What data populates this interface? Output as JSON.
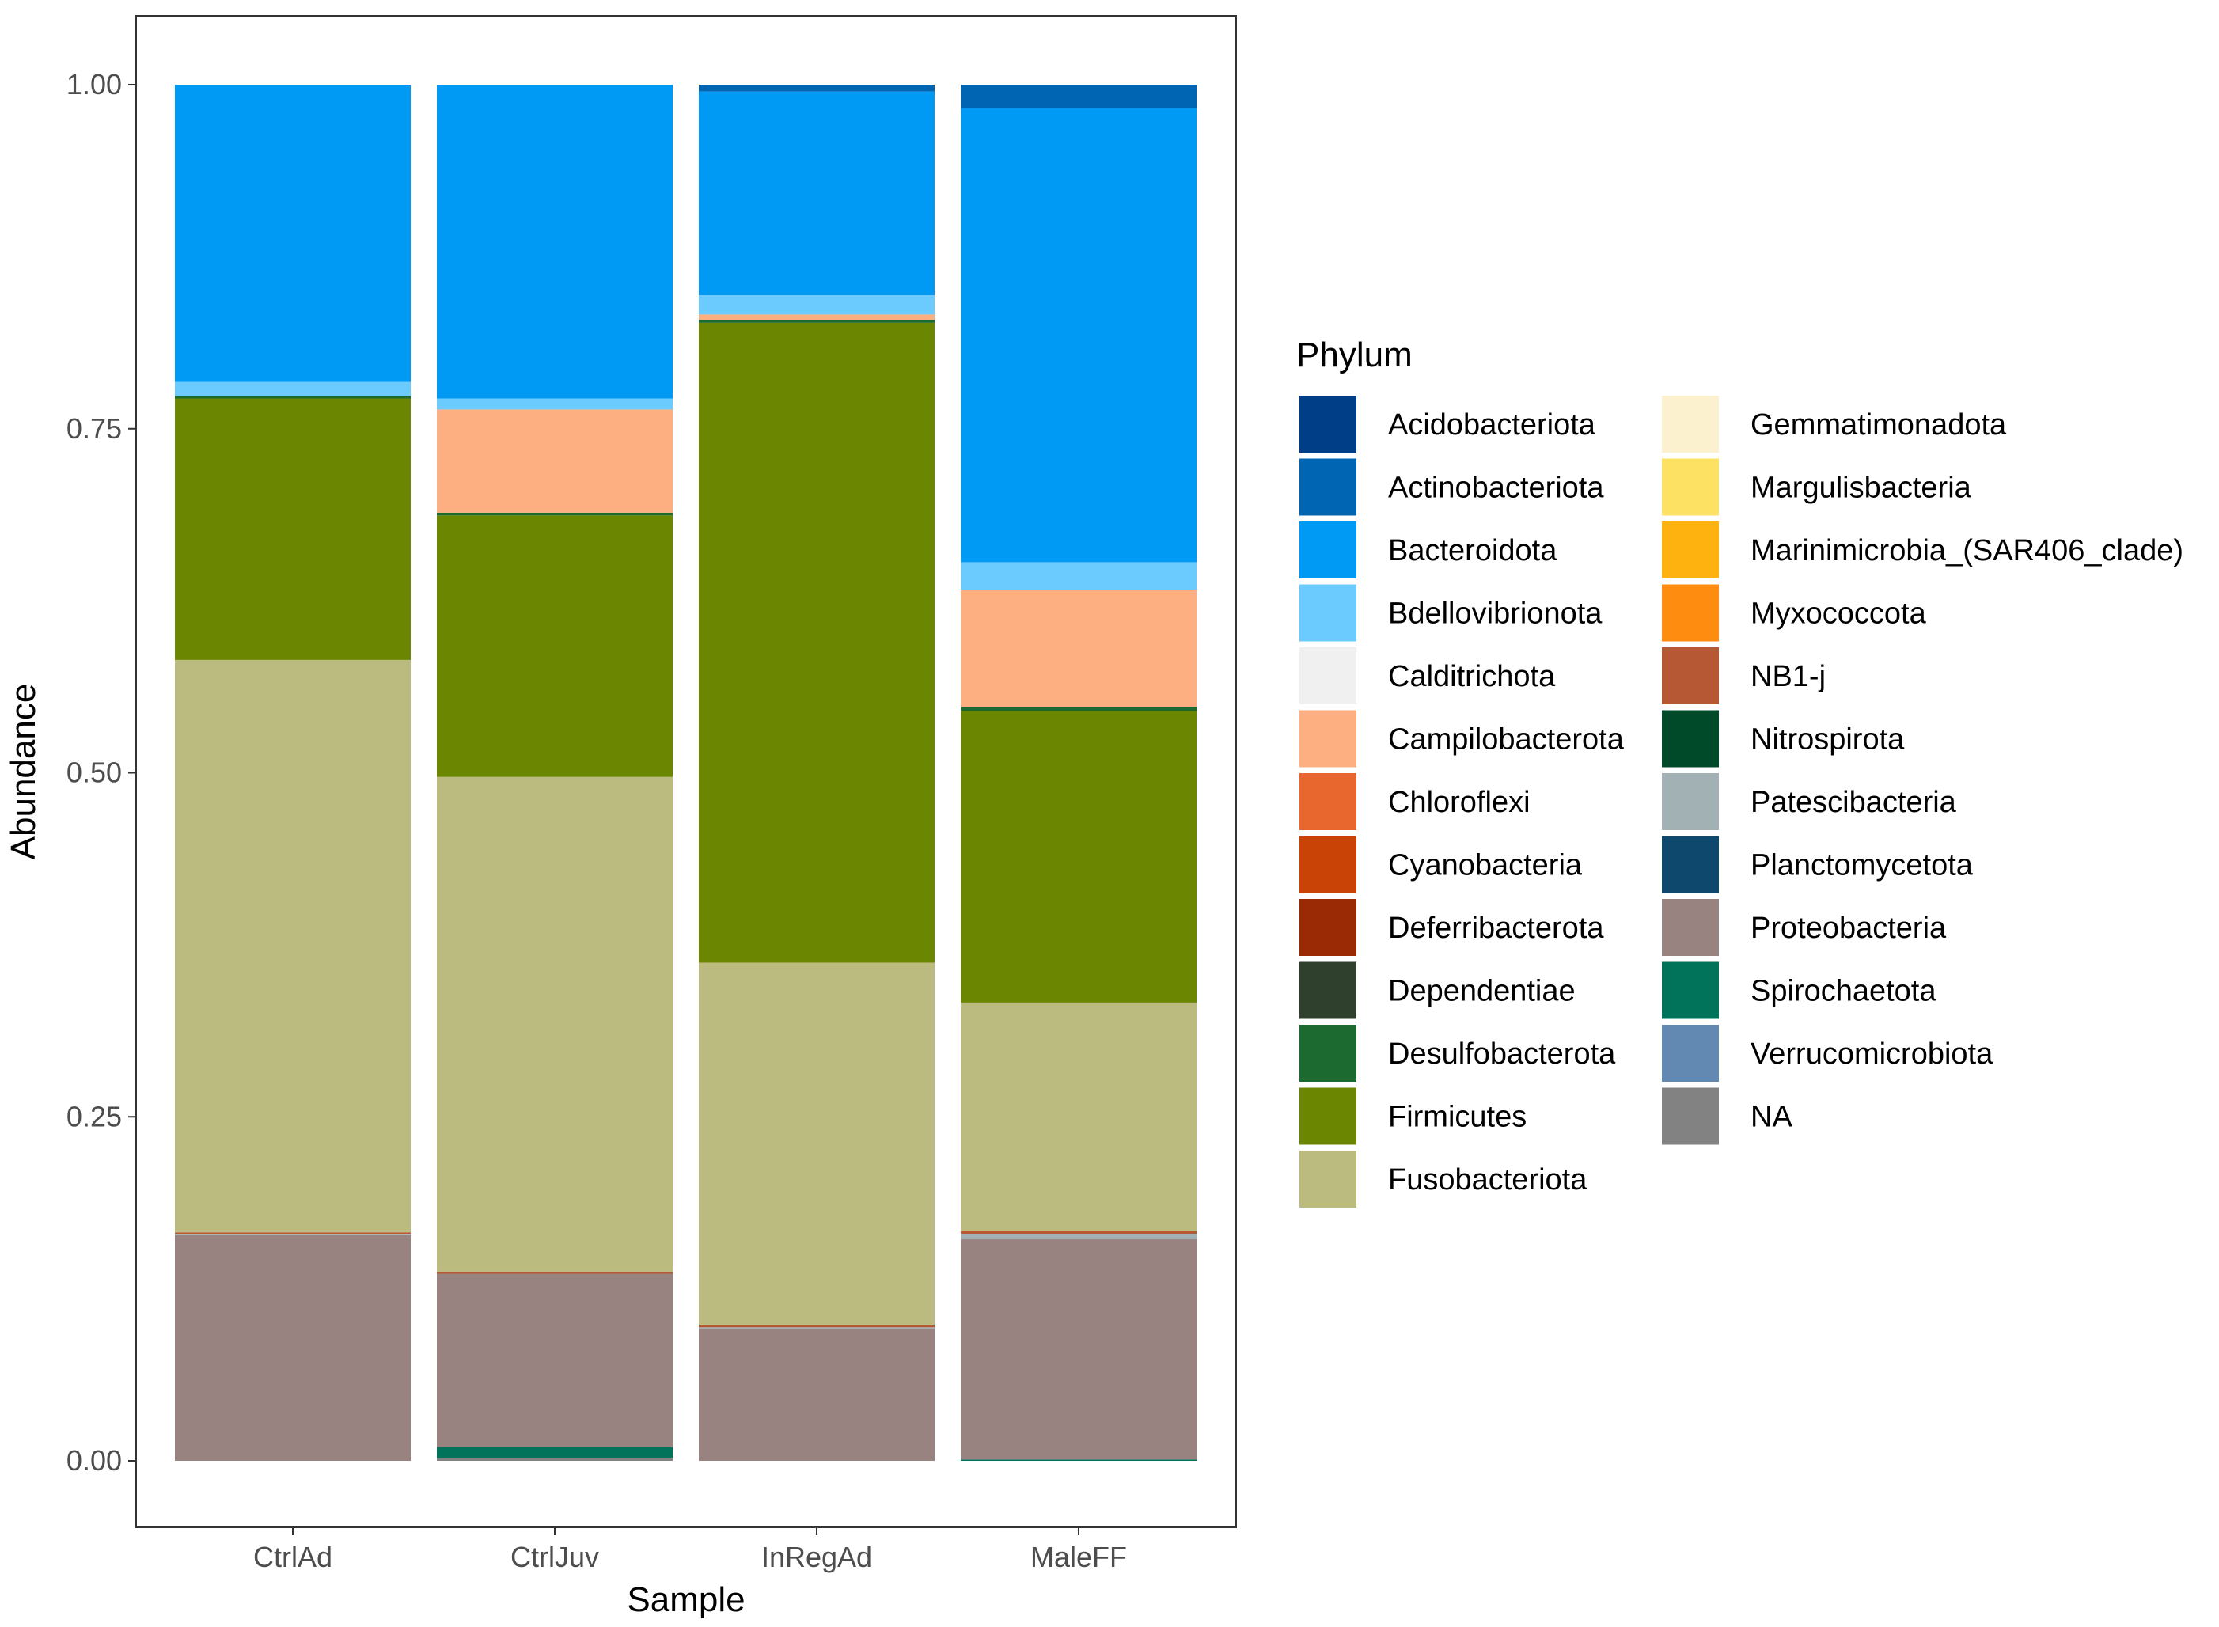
{
  "chart_data": {
    "type": "bar",
    "stacked": true,
    "xlabel": "Sample",
    "ylabel": "Abundance",
    "ylim": [
      0,
      1
    ],
    "y_ticks": [
      "0.00",
      "0.25",
      "0.50",
      "0.75",
      "1.00"
    ],
    "categories": [
      "CtrlAd",
      "CtrlJuv",
      "InRegAd",
      "MaleFF"
    ],
    "legend": {
      "title": "Phylum",
      "position": "right",
      "columns": 2
    },
    "series": [
      {
        "name": "Acidobacteriota",
        "color": "#003f87",
        "values": [
          0,
          0,
          0,
          0
        ]
      },
      {
        "name": "Actinobacteriota",
        "color": "#0066b3",
        "values": [
          0,
          0,
          0.005,
          0.017
        ]
      },
      {
        "name": "Bacteroidota",
        "color": "#009af4",
        "values": [
          0.216,
          0.228,
          0.148,
          0.33
        ]
      },
      {
        "name": "Bdellovibrionota",
        "color": "#6ccbfe",
        "values": [
          0.01,
          0.008,
          0.014,
          0.02
        ]
      },
      {
        "name": "Calditrichota",
        "color": "#f0f0f0",
        "values": [
          0,
          0,
          0,
          0
        ]
      },
      {
        "name": "Campilobacterota",
        "color": "#fdaf81",
        "values": [
          0,
          0.075,
          0.004,
          0.085
        ]
      },
      {
        "name": "Chloroflexi",
        "color": "#e8672f",
        "values": [
          0,
          0,
          0,
          0
        ]
      },
      {
        "name": "Cyanobacteria",
        "color": "#c94307",
        "values": [
          0,
          0,
          0,
          0
        ]
      },
      {
        "name": "Deferribacterota",
        "color": "#9a2a05",
        "values": [
          0,
          0,
          0,
          0
        ]
      },
      {
        "name": "Dependentiae",
        "color": "#2f412c",
        "values": [
          0,
          0,
          0,
          0
        ]
      },
      {
        "name": "Desulfobacterota",
        "color": "#1d6a31",
        "values": [
          0.002,
          0.002,
          0.002,
          0.003
        ]
      },
      {
        "name": "Firmicutes",
        "color": "#6b8600",
        "values": [
          0.19,
          0.19,
          0.465,
          0.212
        ]
      },
      {
        "name": "Fusobacteriota",
        "color": "#bcbb7f",
        "values": [
          0.416,
          0.36,
          0.263,
          0.166
        ]
      },
      {
        "name": "Gemmatimonadota",
        "color": "#fbf1cf",
        "values": [
          0,
          0,
          0,
          0
        ]
      },
      {
        "name": "Margulisbacteria",
        "color": "#fde163",
        "values": [
          0,
          0,
          0,
          0
        ]
      },
      {
        "name": "Marinimicrobia_(SAR406_clade)",
        "color": "#feb20f",
        "values": [
          0,
          0,
          0,
          0
        ]
      },
      {
        "name": "Myxococcota",
        "color": "#fd8c10",
        "values": [
          0,
          0,
          0,
          0
        ]
      },
      {
        "name": "NB1-j",
        "color": "#b65834",
        "values": [
          0.001,
          0.001,
          0.002,
          0.002
        ]
      },
      {
        "name": "Nitrospirota",
        "color": "#004a29",
        "values": [
          0,
          0,
          0,
          0
        ]
      },
      {
        "name": "Patescibacteria",
        "color": "#a2b1b4",
        "values": [
          0.001,
          0,
          0.001,
          0.004
        ]
      },
      {
        "name": "Planctomycetota",
        "color": "#0e486c",
        "values": [
          0,
          0,
          0,
          0
        ]
      },
      {
        "name": "Proteobacteria",
        "color": "#988380",
        "values": [
          0.164,
          0.126,
          0.096,
          0.16
        ]
      },
      {
        "name": "Spirochaetota",
        "color": "#00735a",
        "values": [
          0,
          0.008,
          0,
          0.001
        ]
      },
      {
        "name": "Verrucomicrobiota",
        "color": "#6289b2",
        "values": [
          0,
          0,
          0,
          0
        ]
      },
      {
        "name": "NA",
        "color": "#828282",
        "values": [
          0,
          0.002,
          0,
          0
        ]
      }
    ]
  }
}
